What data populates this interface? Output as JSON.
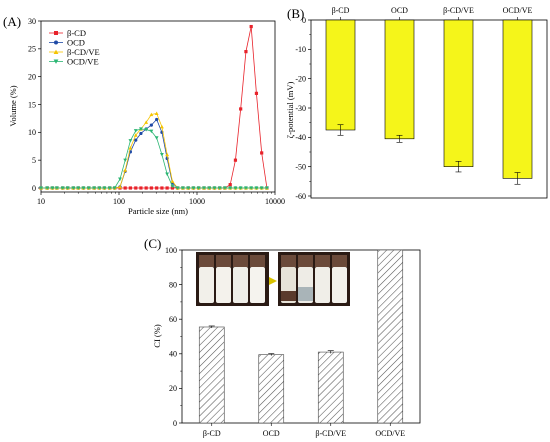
{
  "panels": {
    "a": "(A)",
    "b": "(B)",
    "c": "(C)"
  },
  "chart_data": [
    {
      "id": "A",
      "type": "line",
      "xlabel": "Particle size (nm)",
      "ylabel": "Volume (%)",
      "xscale": "log",
      "xlim": [
        10,
        10000
      ],
      "ylim": [
        0,
        30
      ],
      "xticks": [
        {
          "v": 10,
          "label": "10"
        },
        {
          "v": 100,
          "label": "100"
        },
        {
          "v": 1000,
          "label": "1000"
        },
        {
          "v": 10000,
          "label": "10000"
        }
      ],
      "yticks": [
        {
          "v": 0,
          "label": "0"
        },
        {
          "v": 5,
          "label": "5"
        },
        {
          "v": 10,
          "label": "10"
        },
        {
          "v": 15,
          "label": "15"
        },
        {
          "v": 20,
          "label": "20"
        },
        {
          "v": 25,
          "label": "25"
        },
        {
          "v": 30,
          "label": "30"
        }
      ],
      "legend_position": "top-left",
      "series": [
        {
          "name": "β-CD",
          "color": "#e8222a",
          "marker": "square",
          "x": [
            10,
            12,
            14,
            16,
            19,
            22,
            26,
            30,
            35,
            41,
            48,
            56,
            65,
            76,
            88,
            103,
            120,
            140,
            164,
            191,
            223,
            260,
            304,
            355,
            414,
            484,
            565,
            660,
            771,
            900,
            1050,
            1230,
            1435,
            1675,
            1955,
            2280,
            2665,
            3110,
            3630,
            4240,
            4950,
            5780,
            6750,
            7880
          ],
          "y": [
            0,
            0,
            0,
            0,
            0,
            0,
            0,
            0,
            0,
            0,
            0,
            0,
            0,
            0,
            0,
            0,
            0,
            0,
            0,
            0,
            0,
            0,
            0,
            0,
            0,
            0,
            0,
            0,
            0,
            0,
            0,
            0,
            0,
            0,
            0,
            0,
            0.6,
            5.0,
            14.2,
            24.5,
            29.0,
            17.0,
            6.3,
            0
          ]
        },
        {
          "name": "OCD",
          "color": "#1f4aa6",
          "marker": "circle",
          "x": [
            10,
            12,
            14,
            16,
            19,
            22,
            26,
            30,
            35,
            41,
            48,
            56,
            65,
            76,
            88,
            103,
            120,
            140,
            164,
            191,
            223,
            260,
            304,
            355,
            414,
            484,
            565,
            660,
            771,
            900,
            1050,
            1230,
            1435,
            1675,
            1955,
            2280,
            2665,
            3110,
            3630,
            4240,
            4950,
            5780,
            6750,
            7880
          ],
          "y": [
            0,
            0,
            0,
            0,
            0,
            0,
            0,
            0,
            0,
            0,
            0,
            0,
            0,
            0,
            0,
            0.2,
            3.0,
            6.5,
            8.6,
            9.8,
            10.6,
            11.3,
            12.3,
            10.0,
            5.3,
            0.9,
            0,
            0,
            0,
            0,
            0,
            0,
            0,
            0,
            0,
            0,
            0,
            0,
            0,
            0,
            0,
            0,
            0,
            0
          ]
        },
        {
          "name": "β-CD/VE",
          "color": "#f5c400",
          "marker": "triangle-up",
          "x": [
            10,
            12,
            14,
            16,
            19,
            22,
            26,
            30,
            35,
            41,
            48,
            56,
            65,
            76,
            88,
            103,
            120,
            140,
            164,
            191,
            223,
            260,
            304,
            355,
            414,
            484,
            565,
            660,
            771,
            900,
            1050,
            1230,
            1435,
            1675,
            1955,
            2280,
            2665,
            3110,
            3630,
            4240,
            4950,
            5780,
            6750,
            7880
          ],
          "y": [
            0,
            0,
            0,
            0,
            0,
            0,
            0,
            0,
            0,
            0,
            0,
            0,
            0,
            0,
            0,
            0.2,
            3.2,
            7.2,
            9.5,
            10.6,
            11.8,
            13.2,
            13.4,
            11.0,
            6.0,
            1.2,
            0,
            0,
            0,
            0,
            0,
            0,
            0,
            0,
            0,
            0,
            0,
            0,
            0,
            0,
            0,
            0,
            0,
            0
          ]
        },
        {
          "name": "OCD/VE",
          "color": "#2bb673",
          "marker": "triangle-down",
          "x": [
            10,
            12,
            14,
            16,
            19,
            22,
            26,
            30,
            35,
            41,
            48,
            56,
            65,
            76,
            88,
            103,
            120,
            140,
            164,
            191,
            223,
            260,
            304,
            355,
            414,
            484,
            565,
            660,
            771,
            900,
            1050,
            1230,
            1435,
            1675,
            1955,
            2280,
            2665,
            3110,
            3630,
            4240,
            4950,
            5780,
            6750,
            7880
          ],
          "y": [
            0,
            0,
            0,
            0,
            0,
            0,
            0,
            0,
            0,
            0,
            0,
            0,
            0,
            0,
            0,
            1.6,
            5.0,
            8.5,
            10.3,
            10.6,
            10.5,
            10.2,
            9.0,
            6.0,
            2.5,
            0.3,
            0,
            0,
            0,
            0,
            0,
            0,
            0,
            0,
            0,
            0,
            0,
            0,
            0,
            0,
            0,
            0,
            0,
            0
          ]
        }
      ]
    },
    {
      "id": "B",
      "type": "bar",
      "categories": [
        "β-CD",
        "OCD",
        "β-CD/VE",
        "OCD/VE"
      ],
      "values": [
        -37.5,
        -40.5,
        -50.0,
        -54.0
      ],
      "errors": [
        1.8,
        1.2,
        1.8,
        2.0
      ],
      "bar_color": "#f5f51a",
      "ylabel": "ζ-potential (mV)",
      "ylim": [
        -60,
        0
      ],
      "yticks": [
        {
          "v": 0,
          "label": "0"
        },
        {
          "v": -10,
          "label": "-10"
        },
        {
          "v": -20,
          "label": "-20"
        },
        {
          "v": -30,
          "label": "-30"
        },
        {
          "v": -40,
          "label": "-40"
        },
        {
          "v": -50,
          "label": "-50"
        },
        {
          "v": -60,
          "label": "-60"
        }
      ],
      "category_labels_position": "top"
    },
    {
      "id": "C",
      "type": "bar",
      "categories": [
        "β-CD",
        "OCD",
        "β-CD/VE",
        "OCD/VE"
      ],
      "values": [
        55.5,
        39.5,
        41.0,
        100.0
      ],
      "errors": [
        0.6,
        0.6,
        0.8,
        0
      ],
      "bar_fill": "hatched",
      "ylabel": "CI (%)",
      "ylim": [
        0,
        100
      ],
      "yticks": [
        {
          "v": 0,
          "label": "0"
        },
        {
          "v": 20,
          "label": "20"
        },
        {
          "v": 40,
          "label": "40"
        },
        {
          "v": 60,
          "label": "60"
        },
        {
          "v": 80,
          "label": "80"
        },
        {
          "v": 100,
          "label": "100"
        }
      ],
      "inset": "photo of emulsion vials before and after storage"
    }
  ]
}
